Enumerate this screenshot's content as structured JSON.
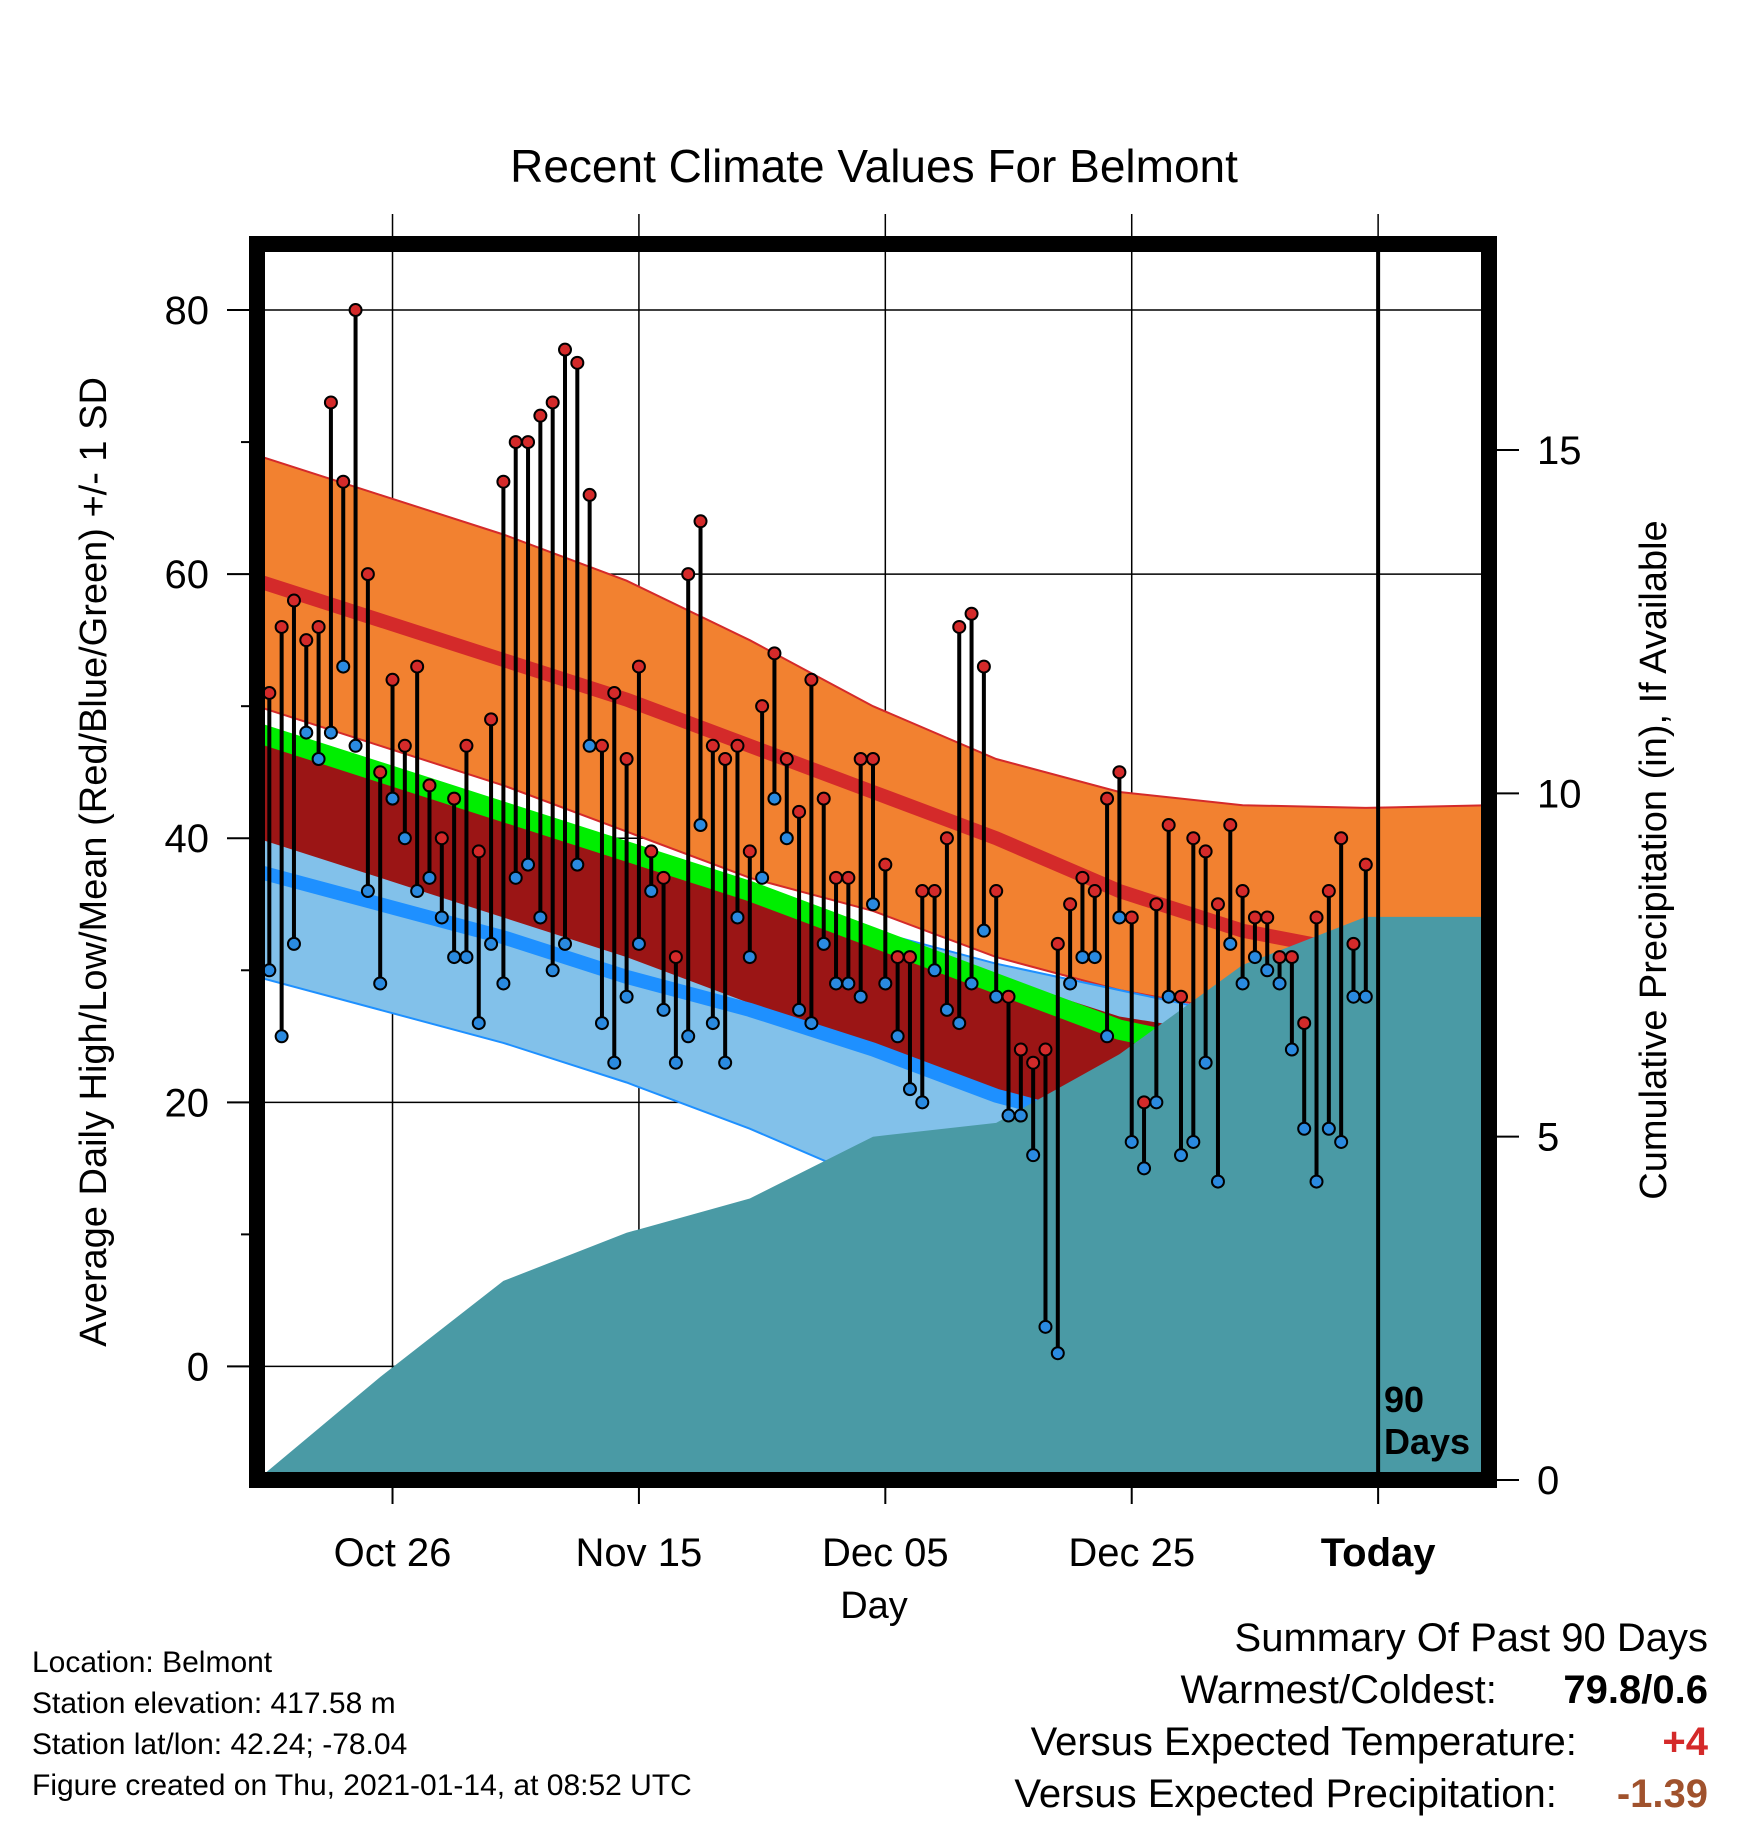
{
  "chart_data": {
    "type": "line",
    "title": "Recent Climate Values For Belmont",
    "xlabel": "Day",
    "ylabel": "Average Daily High/Low/Mean (Red/Blue/Green) +/- 1 SD",
    "y2label": "Cumulative Precipitation (in), If Available",
    "x_ticks": [
      "Oct 26",
      "Nov 15",
      "Dec 05",
      "Dec 25",
      "Today"
    ],
    "y_ticks": [
      "0",
      "20",
      "40",
      "60",
      "80"
    ],
    "y2_ticks": [
      "0",
      "5",
      "10",
      "15"
    ],
    "ylim": [
      -8.6,
      85
    ],
    "y2lim": [
      0,
      18
    ],
    "xlim_days": [
      -91,
      9
    ],
    "today_marker": "90\nDays",
    "grid": true,
    "normals": {
      "days": [
        -91,
        -81,
        -71,
        -61,
        -51,
        -41,
        -31,
        -21,
        -11,
        -1,
        9
      ],
      "high_mean": [
        59.5,
        56.5,
        53.5,
        50.5,
        47.0,
        43.5,
        40.0,
        36.0,
        33.0,
        31.2,
        31.7
      ],
      "high_sd_upper": [
        69.0,
        66.0,
        63.0,
        59.5,
        55.0,
        50.0,
        46.0,
        43.5,
        42.5,
        42.3,
        42.5
      ],
      "high_sd_lower": [
        50.0,
        47.0,
        44.0,
        40.5,
        37.0,
        34.5,
        31.0,
        28.5,
        26.8,
        26.2,
        26.2
      ],
      "mean": [
        48.0,
        45.0,
        42.0,
        39.0,
        36.0,
        32.5,
        29.0,
        25.5,
        23.5,
        22.0,
        22.0
      ],
      "low_mean": [
        37.5,
        35.0,
        32.5,
        29.5,
        27.0,
        24.0,
        20.5,
        18.0,
        15.5,
        14.2,
        14.2
      ],
      "low_sd_upper": [
        45.0,
        43.0,
        41.0,
        38.5,
        36.0,
        33.0,
        30.5,
        28.5,
        26.5,
        26.0,
        26.0
      ],
      "low_sd_lower": [
        29.5,
        27.0,
        24.5,
        21.5,
        18.0,
        14.0,
        10.0,
        6.0,
        2.0,
        -0.5,
        -1.5
      ],
      "mean_sd_upper": [
        48.5,
        45.5,
        42.5,
        39.5,
        36.0,
        33.0,
        29.5,
        26.5,
        25.0,
        23.5,
        23.5
      ],
      "mean_sd_lower": [
        40.0,
        37.0,
        34.0,
        31.0,
        27.5,
        24.0,
        20.5,
        19.0,
        20.5,
        20.0,
        20.5
      ]
    },
    "series": [
      {
        "name": "High",
        "color": "#d42a2a",
        "values": [
          51,
          56,
          58,
          55,
          56,
          73,
          67,
          80,
          60,
          45,
          52,
          47,
          53,
          44,
          40,
          43,
          47,
          39,
          49,
          67,
          70,
          70,
          72,
          73,
          77,
          76,
          66,
          47,
          51,
          46,
          53,
          39,
          37,
          31,
          60,
          64,
          47,
          46,
          47,
          39,
          50,
          54,
          46,
          42,
          52,
          43,
          37,
          37,
          46,
          46,
          38,
          31,
          31,
          36,
          36,
          40,
          56,
          57,
          53,
          36,
          28,
          24,
          23,
          24,
          32,
          35,
          37,
          36,
          43,
          45,
          34,
          20,
          35,
          41,
          28,
          40,
          39,
          35,
          41,
          36,
          34,
          34,
          31,
          31,
          26,
          34,
          36,
          40,
          32,
          38
        ]
      },
      {
        "name": "Low",
        "color": "#2a8ae0",
        "values": [
          30,
          25,
          32,
          48,
          46,
          48,
          53,
          47,
          36,
          29,
          43,
          40,
          36,
          37,
          34,
          31,
          31,
          26,
          32,
          29,
          37,
          38,
          34,
          30,
          32,
          38,
          47,
          26,
          23,
          28,
          32,
          36,
          27,
          23,
          25,
          41,
          26,
          23,
          34,
          31,
          37,
          43,
          40,
          27,
          26,
          32,
          29,
          29,
          28,
          35,
          29,
          25,
          21,
          20,
          30,
          27,
          26,
          29,
          33,
          28,
          19,
          19,
          16,
          3,
          1,
          29,
          31,
          31,
          25,
          34,
          17,
          15,
          20,
          28,
          16,
          17,
          23,
          14,
          32,
          29,
          31,
          30,
          29,
          24,
          18,
          14,
          18,
          17,
          28,
          28
        ]
      }
    ],
    "precip": {
      "days": [
        -91,
        -81,
        -71,
        -61,
        -51,
        -41,
        -31,
        -21,
        -11,
        -1,
        9
      ],
      "cumulative_in": [
        0.0,
        1.5,
        2.9,
        3.6,
        4.1,
        5.0,
        5.2,
        6.2,
        7.5,
        8.2,
        8.2
      ]
    }
  },
  "footer": {
    "location": "Location: Belmont",
    "elevation": "Station elevation: 417.58 m",
    "latlon": "Station lat/lon: 42.24; -78.04",
    "created": "Figure created on Thu, 2021-01-14, at 08:52 UTC"
  },
  "summary": {
    "heading": "Summary Of Past 90 Days",
    "warm_cold_label": "Warmest/Coldest:",
    "warm_cold_value": "79.8/0.6",
    "temp_label": "Versus Expected Temperature:",
    "temp_value": "+4",
    "temp_color": "#d42a2a",
    "precip_label": "Versus Expected Precipitation:",
    "precip_value": "-1.39",
    "precip_color": "#a0522d"
  },
  "colors": {
    "high_band": "#f28130",
    "high_line": "#d42a2a",
    "low_band": "#82c1ea",
    "low_line": "#1e90ff",
    "mean_band": "#9b1515",
    "mean_line": "#00ee00",
    "precip": "#4a9aa5"
  }
}
